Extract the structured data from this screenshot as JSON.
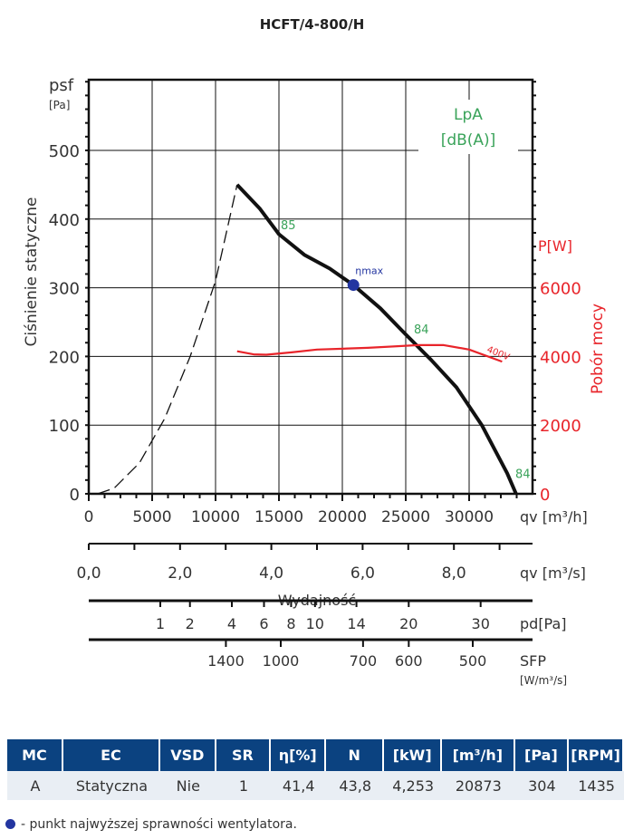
{
  "title": "HCFT/4-800/H",
  "chart_data": {
    "type": "line",
    "title": "HCFT/4-800/H",
    "xlabel": "Wydajność",
    "ylabel": "Ciśnienie statyczne",
    "y_unit_symbol": "psf",
    "y_unit": "[Pa]",
    "y2label": "Pobór mocy",
    "y2_unit": "P[W]",
    "noise_label": "LpA",
    "noise_unit": "[dB(A)]",
    "xlim": [
      0,
      35000
    ],
    "ylim": [
      0,
      600
    ],
    "y2lim": [
      0,
      12000
    ],
    "x_ticks": [
      0,
      5000,
      10000,
      15000,
      20000,
      25000,
      30000
    ],
    "x_unit": "qv [m³/h]",
    "x2_ticks": [
      "0,0",
      "2,0",
      "4,0",
      "6,0",
      "8,0"
    ],
    "x2_values": [
      0,
      2,
      4,
      6,
      8
    ],
    "x2_unit": "qv [m³/s]",
    "y_ticks": [
      0,
      100,
      200,
      300,
      400,
      500
    ],
    "y2_ticks": [
      0,
      2000,
      4000,
      6000
    ],
    "grid": true,
    "series": [
      {
        "name": "static pressure (unstable)",
        "style": "dashed",
        "color": "#111111",
        "points": [
          [
            700,
            0
          ],
          [
            2000,
            8
          ],
          [
            4000,
            45
          ],
          [
            6000,
            110
          ],
          [
            8000,
            200
          ],
          [
            10000,
            310
          ],
          [
            11700,
            450
          ]
        ]
      },
      {
        "name": "static pressure",
        "style": "solid",
        "color": "#111111",
        "points": [
          [
            11700,
            450
          ],
          [
            13500,
            415
          ],
          [
            15000,
            378
          ],
          [
            17000,
            348
          ],
          [
            19000,
            328
          ],
          [
            20873,
            304
          ],
          [
            23000,
            270
          ],
          [
            25000,
            232
          ],
          [
            27000,
            195
          ],
          [
            29000,
            155
          ],
          [
            31000,
            100
          ],
          [
            33000,
            30
          ],
          [
            33700,
            0
          ]
        ]
      },
      {
        "name": "400V",
        "axis": "y2",
        "color": "#e8242a",
        "points": [
          [
            11700,
            4150
          ],
          [
            13000,
            4060
          ],
          [
            14000,
            4050
          ],
          [
            16000,
            4120
          ],
          [
            18000,
            4200
          ],
          [
            22000,
            4250
          ],
          [
            26000,
            4330
          ],
          [
            28000,
            4330
          ],
          [
            30000,
            4200
          ],
          [
            32600,
            3850
          ]
        ]
      }
    ],
    "noise_labels": [
      {
        "text": "85",
        "x": 15000,
        "y": 392
      },
      {
        "text": "84",
        "x": 25500,
        "y": 240
      },
      {
        "text": "84",
        "x": 33500,
        "y": 30
      }
    ],
    "eta_max": {
      "label": "ηmax",
      "x": 20873,
      "y": 304
    },
    "pg_scale": {
      "label": "pd[Pa]",
      "ticks": [
        "1",
        "2",
        "4",
        "6",
        "8",
        "10",
        "14",
        "20",
        "30"
      ]
    },
    "sfp_scale": {
      "label": "SFP",
      "unit": "[W/m³/s]",
      "ticks": [
        "1400",
        "1000",
        "700",
        "600",
        "500"
      ]
    }
  },
  "table": {
    "headers": [
      "MC",
      "EC",
      "VSD",
      "SR",
      "η[%]",
      "N",
      "[kW]",
      "[m³/h]",
      "[Pa]",
      "[RPM]"
    ],
    "row": [
      "A",
      "Statyczna",
      "Nie",
      "1",
      "41,4",
      "43,8",
      "4,253",
      "20873",
      "304",
      "1435"
    ]
  },
  "note": "- punkt najwyższej sprawności wentylatora.",
  "colors": {
    "curve": "#111111",
    "power": "#e8242a",
    "noise": "#3aa35a",
    "eta": "#2335a0",
    "header": "#0b4280"
  }
}
